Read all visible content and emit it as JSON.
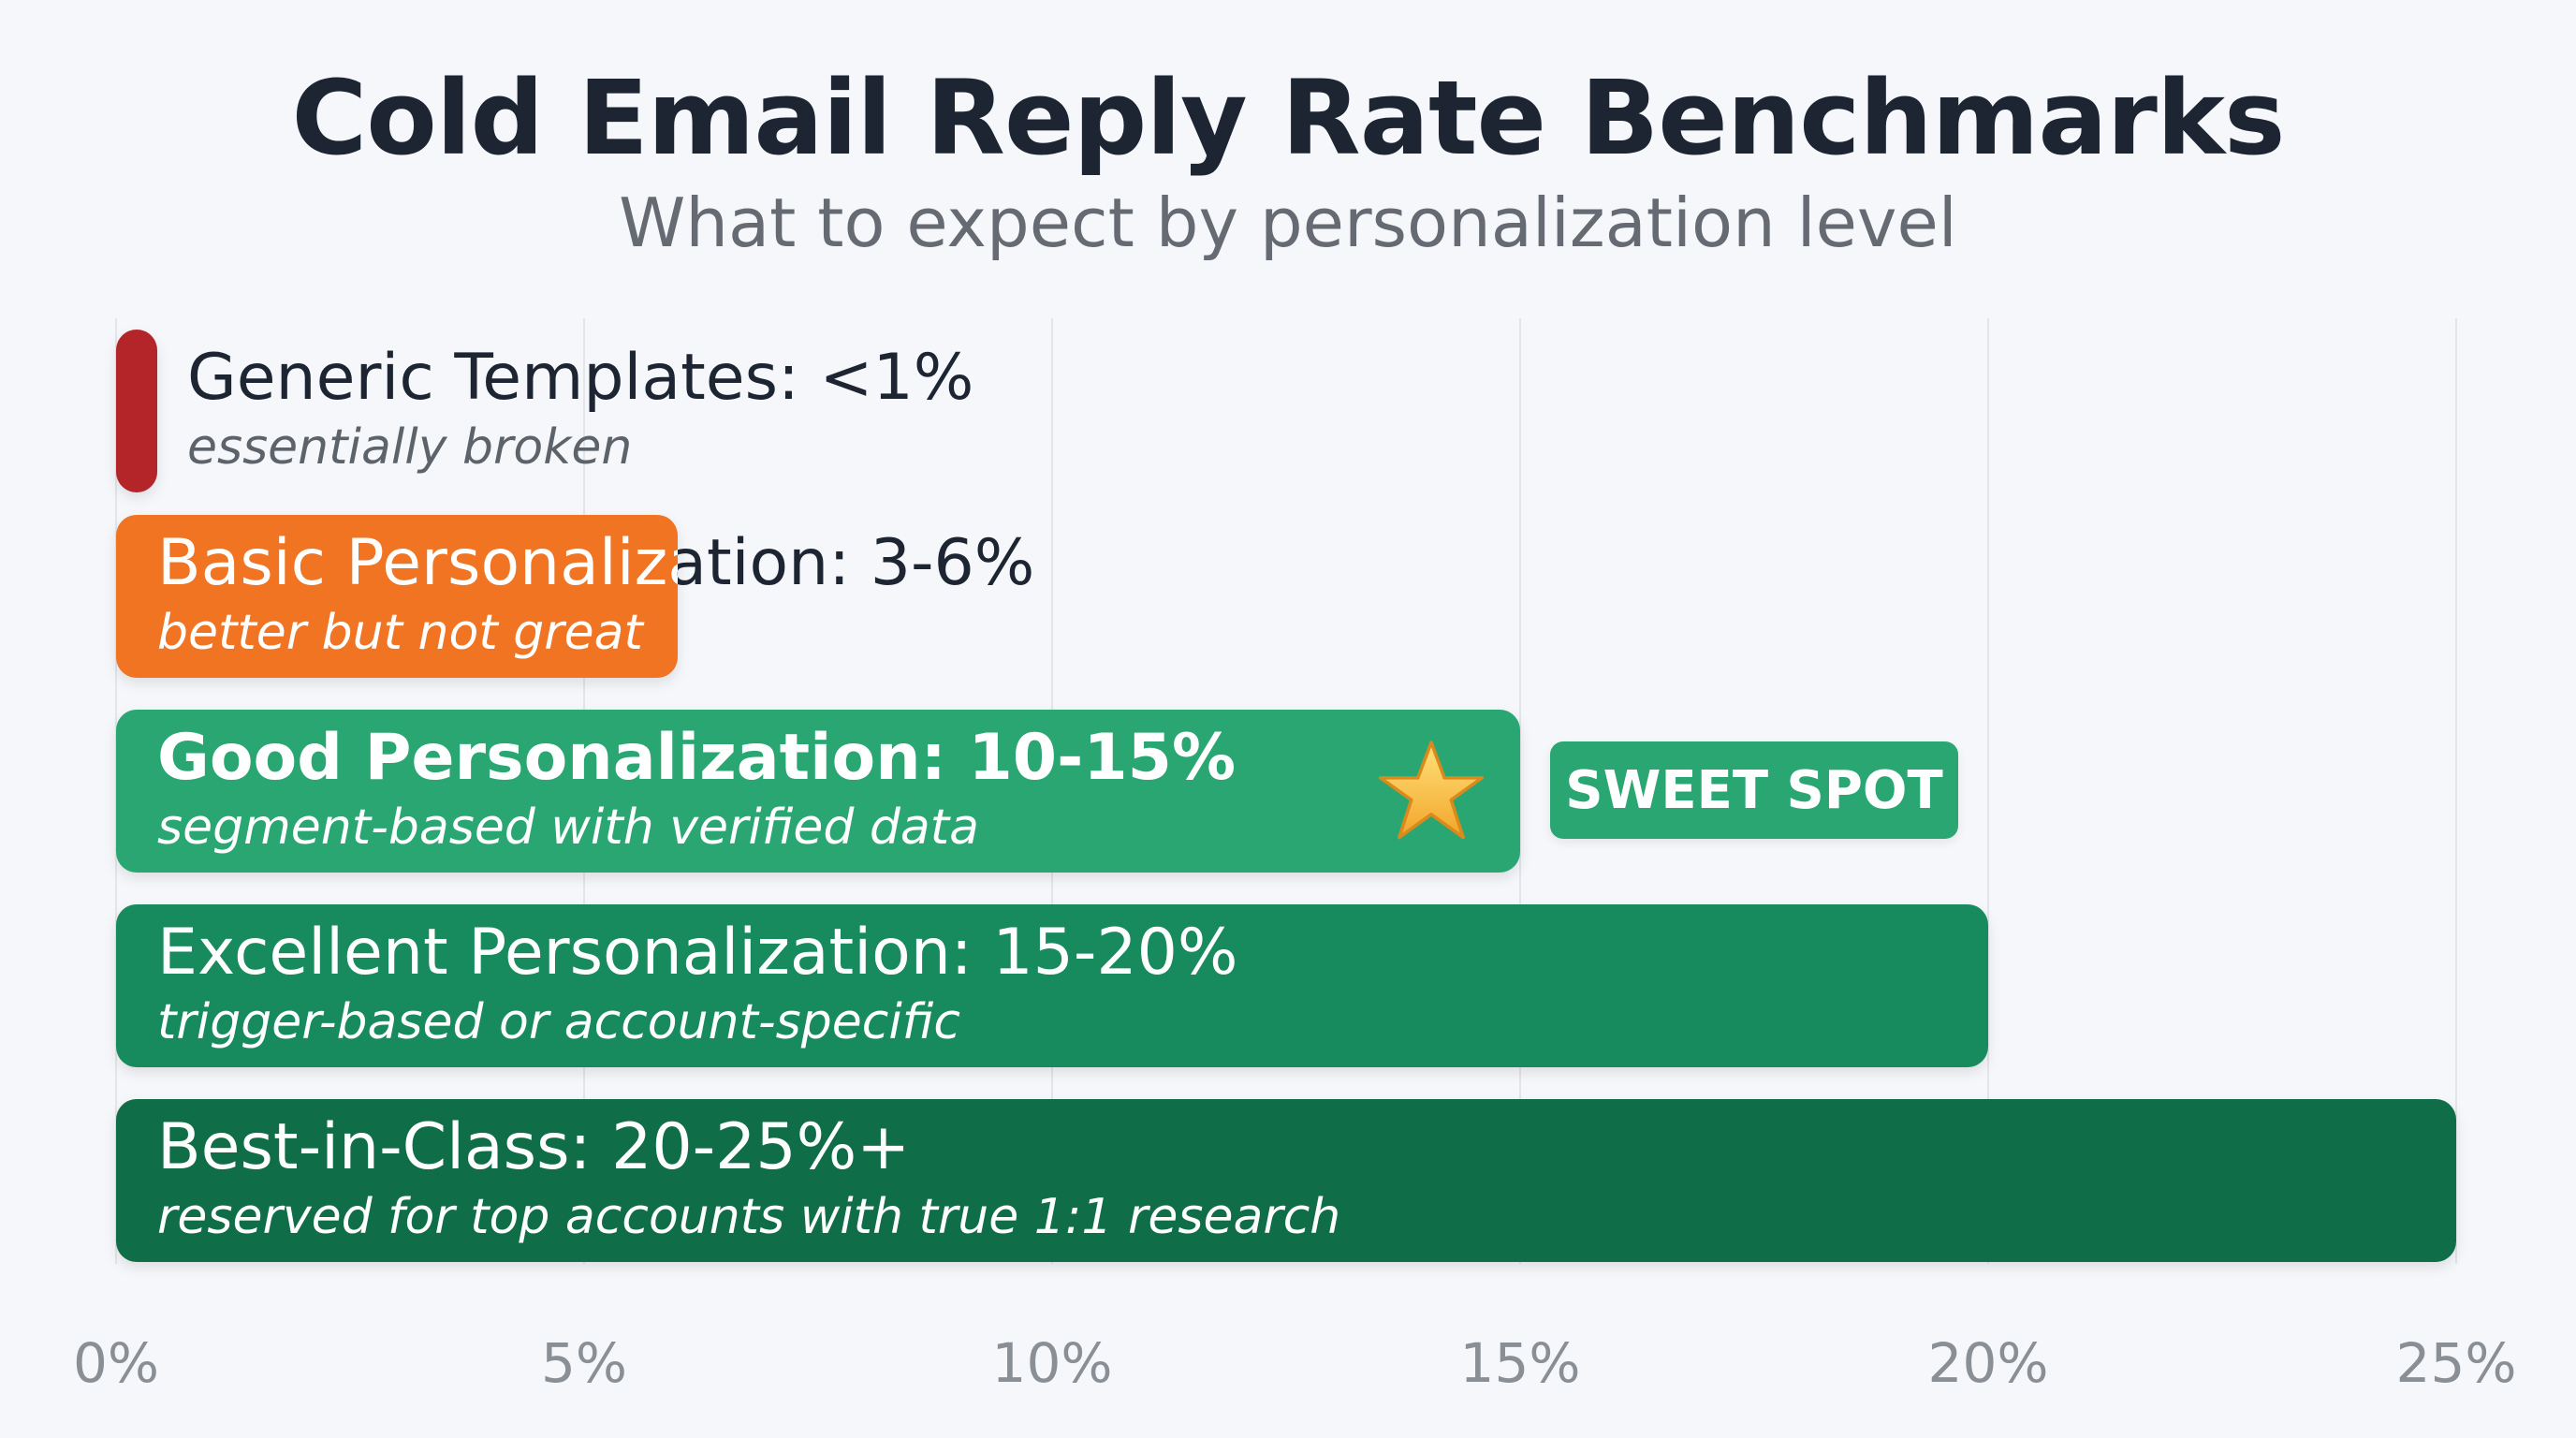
{
  "title": "Cold Email Reply Rate Benchmarks",
  "subtitle": "What to expect by personalization level",
  "badge": "SWEET SPOT",
  "colors": {
    "generic": "#b4252a",
    "basic": "#f07422",
    "good": "#2aa673",
    "excellent": "#178a5e",
    "best": "#0f6e47"
  },
  "chart_data": {
    "type": "bar",
    "orientation": "horizontal",
    "title": "Cold Email Reply Rate Benchmarks",
    "subtitle": "What to expect by personalization level",
    "xlim": [
      0,
      25
    ],
    "x_ticks": [
      "0%",
      "5%",
      "10%",
      "15%",
      "20%",
      "25%"
    ],
    "grid": true,
    "categories": [
      "Generic Templates: <1%",
      "Basic Personalization: 3-6%",
      "Good Personalization: 10-15%",
      "Excellent Personalization: 15-20%",
      "Best-in-Class: 20-25%+"
    ],
    "notes": [
      "essentially broken",
      "better but not great",
      "segment-based with verified data",
      "trigger-based or account-specific",
      "reserved for top accounts with true 1:1 research"
    ],
    "values": [
      0.45,
      6,
      15,
      20,
      25
    ],
    "highlight": {
      "category_index": 2,
      "label": "SWEET SPOT",
      "icon": "star-icon"
    }
  }
}
